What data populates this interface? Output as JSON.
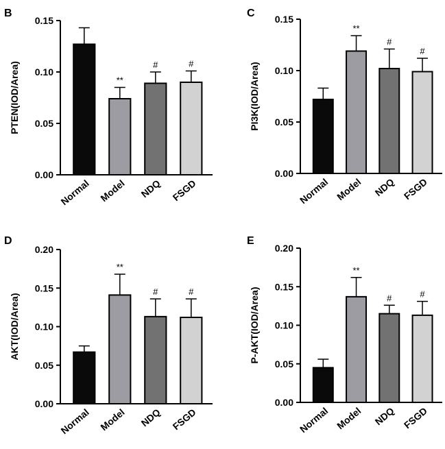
{
  "colors": {
    "Normal": "#0a0a0a",
    "Model": "#9c9ca2",
    "NDQ": "#727272",
    "FSGD": "#d2d2d2",
    "axis": "#000000"
  },
  "chart_data": [
    {
      "panel_label": "B",
      "type": "bar",
      "ylabel": "PTEN(IOD/Area)",
      "ylim": [
        0,
        0.15
      ],
      "yticks": [
        "0.00",
        "0.05",
        "0.10",
        "0.15"
      ],
      "categories": [
        "Normal",
        "Model",
        "NDQ",
        "FSGD"
      ],
      "values": [
        0.127,
        0.074,
        0.089,
        0.09
      ],
      "errors": [
        0.016,
        0.011,
        0.011,
        0.011
      ],
      "annotations": [
        "",
        "**",
        "#",
        "#"
      ]
    },
    {
      "panel_label": "C",
      "type": "bar",
      "ylabel": "PI3K(IOD/Area)",
      "ylim": [
        0,
        0.15
      ],
      "yticks": [
        "0.00",
        "0.05",
        "0.10",
        "0.15"
      ],
      "categories": [
        "Normal",
        "Model",
        "NDQ",
        "FSGD"
      ],
      "values": [
        0.072,
        0.119,
        0.102,
        0.099
      ],
      "errors": [
        0.011,
        0.015,
        0.019,
        0.013
      ],
      "annotations": [
        "",
        "**",
        "#",
        "#"
      ]
    },
    {
      "panel_label": "D",
      "type": "bar",
      "ylabel": "AKT(IOD/Area)",
      "ylim": [
        0,
        0.2
      ],
      "yticks": [
        "0.00",
        "0.05",
        "0.10",
        "0.15",
        "0.20"
      ],
      "categories": [
        "Normal",
        "Model",
        "NDQ",
        "FSGD"
      ],
      "values": [
        0.067,
        0.141,
        0.113,
        0.112
      ],
      "errors": [
        0.008,
        0.027,
        0.023,
        0.024
      ],
      "annotations": [
        "",
        "**",
        "#",
        "#"
      ]
    },
    {
      "panel_label": "E",
      "type": "bar",
      "ylabel": "P-AKT(IOD/Area)",
      "ylim": [
        0,
        0.2
      ],
      "yticks": [
        "0.00",
        "0.05",
        "0.10",
        "0.15",
        "0.20"
      ],
      "categories": [
        "Normal",
        "Model",
        "NDQ",
        "FSGD"
      ],
      "values": [
        0.045,
        0.137,
        0.115,
        0.113
      ],
      "errors": [
        0.011,
        0.025,
        0.011,
        0.018
      ],
      "annotations": [
        "",
        "**",
        "#",
        "#"
      ]
    }
  ]
}
